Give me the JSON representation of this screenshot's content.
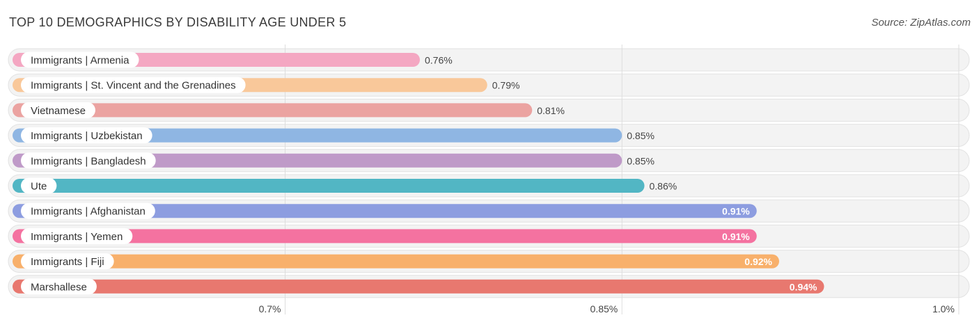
{
  "header": {
    "title": "TOP 10 DEMOGRAPHICS BY DISABILITY AGE UNDER 5",
    "source": "Source: ZipAtlas.com"
  },
  "chart_data": {
    "type": "bar",
    "orientation": "horizontal",
    "title": "TOP 10 DEMOGRAPHICS BY DISABILITY AGE UNDER 5",
    "xlabel": "",
    "ylabel": "",
    "xlim": [
      0.58,
      1.0
    ],
    "x_ticks": [
      {
        "value": 0.7,
        "label": "0.7%"
      },
      {
        "value": 0.85,
        "label": "0.85%"
      },
      {
        "value": 1.0,
        "label": "1.0%"
      }
    ],
    "grid": true,
    "categories": [
      "Immigrants | Armenia",
      "Immigrants | St. Vincent and the Grenadines",
      "Vietnamese",
      "Immigrants | Uzbekistan",
      "Immigrants | Bangladesh",
      "Ute",
      "Immigrants | Afghanistan",
      "Immigrants | Yemen",
      "Immigrants | Fiji",
      "Marshallese"
    ],
    "values": [
      0.76,
      0.79,
      0.81,
      0.85,
      0.85,
      0.86,
      0.91,
      0.91,
      0.92,
      0.94
    ],
    "value_labels": [
      "0.76%",
      "0.79%",
      "0.81%",
      "0.85%",
      "0.85%",
      "0.86%",
      "0.91%",
      "0.91%",
      "0.92%",
      "0.94%"
    ],
    "colors": [
      "#f4a7c2",
      "#f9c89a",
      "#eba3a1",
      "#8fb6e3",
      "#bf9ac8",
      "#52b6c4",
      "#8d9de0",
      "#f472a0",
      "#f8b06b",
      "#e8786f"
    ]
  }
}
